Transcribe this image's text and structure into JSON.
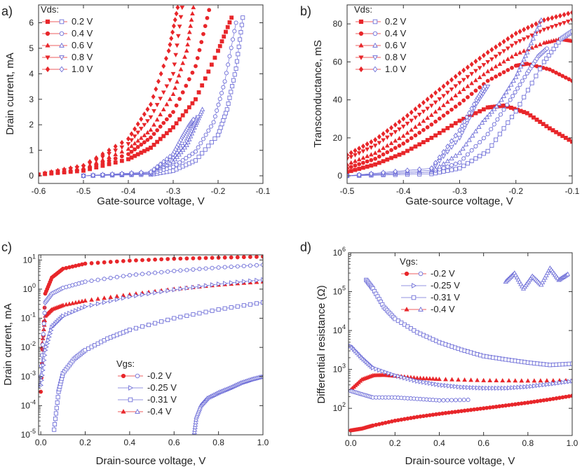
{
  "figure": {
    "description_labels": [
      "a)",
      "b)",
      "c)",
      "d)"
    ]
  },
  "colors": {
    "red": "#e8262a",
    "blue": "#6f6fd8",
    "axis": "#333333",
    "text": "#222222"
  },
  "chart_data": [
    {
      "id": "a",
      "panel_label": "a)",
      "type": "scatter",
      "title": "",
      "xlabel": "Gate-source voltage, V",
      "ylabel": "Drain current, mA",
      "xlim": [
        -0.6,
        -0.1
      ],
      "ylim": [
        -0.3,
        6.7
      ],
      "xticks": [
        -0.6,
        -0.5,
        -0.4,
        -0.3,
        -0.2,
        -0.1
      ],
      "xtick_labels": [
        "-0.6",
        "-0.5",
        "-0.4",
        "-0.3",
        "-0.2",
        "-0.1"
      ],
      "yticks": [
        0,
        1,
        2,
        3,
        4,
        5,
        6
      ],
      "ytick_labels": [
        "0",
        "1",
        "2",
        "3",
        "4",
        "5",
        "6"
      ],
      "yscale": "linear",
      "legend": {
        "title": "Vds:",
        "position": "top-left",
        "entries": [
          "0.2 V",
          "0.4 V",
          "0.6 V",
          "0.8 V",
          "1.0 V"
        ]
      },
      "series": [
        {
          "name": "0.2 V",
          "kind": "red",
          "marker": "square",
          "x": [
            -0.6,
            -0.5,
            -0.4,
            -0.35,
            -0.3,
            -0.25,
            -0.2,
            -0.17
          ],
          "y": [
            0.05,
            0.2,
            0.65,
            1.1,
            1.9,
            3.0,
            4.9,
            6.2
          ]
        },
        {
          "name": "0.4 V",
          "kind": "red",
          "marker": "circle",
          "x": [
            -0.6,
            -0.5,
            -0.4,
            -0.35,
            -0.3,
            -0.25,
            -0.22
          ],
          "y": [
            0.05,
            0.25,
            0.85,
            1.5,
            2.5,
            4.3,
            6.5
          ]
        },
        {
          "name": "0.6 V",
          "kind": "red",
          "marker": "triangle-up",
          "x": [
            -0.6,
            -0.5,
            -0.4,
            -0.35,
            -0.3,
            -0.27,
            -0.255
          ],
          "y": [
            0.05,
            0.3,
            1.05,
            1.8,
            3.2,
            4.9,
            6.6
          ]
        },
        {
          "name": "0.8 V",
          "kind": "red",
          "marker": "triangle-down",
          "x": [
            -0.6,
            -0.5,
            -0.4,
            -0.35,
            -0.3,
            -0.28
          ],
          "y": [
            0.05,
            0.35,
            1.25,
            2.3,
            4.0,
            6.6
          ]
        },
        {
          "name": "1.0 V",
          "kind": "red",
          "marker": "diamond",
          "x": [
            -0.6,
            -0.5,
            -0.4,
            -0.35,
            -0.31,
            -0.29
          ],
          "y": [
            0.05,
            0.4,
            1.45,
            2.8,
            4.9,
            6.6
          ]
        },
        {
          "name": "0.2 V",
          "kind": "blue",
          "marker": "square",
          "x": [
            -0.5,
            -0.35,
            -0.3,
            -0.25,
            -0.2,
            -0.18,
            -0.16,
            -0.145
          ],
          "y": [
            0,
            0.05,
            0.2,
            0.6,
            1.6,
            2.6,
            4.2,
            6.2
          ]
        },
        {
          "name": "0.4 V",
          "kind": "blue",
          "marker": "circle",
          "x": [
            -0.5,
            -0.35,
            -0.3,
            -0.25,
            -0.21,
            -0.185,
            -0.16
          ],
          "y": [
            0,
            0.08,
            0.35,
            0.95,
            2.1,
            3.7,
            6.0
          ]
        },
        {
          "name": "0.6 V",
          "kind": "blue",
          "marker": "triangle-up",
          "x": [
            -0.5,
            -0.35,
            -0.3,
            -0.27,
            -0.25,
            -0.235
          ],
          "y": [
            0,
            0.1,
            0.55,
            1.2,
            2.0,
            2.6
          ]
        },
        {
          "name": "0.8 V",
          "kind": "blue",
          "marker": "triangle-down",
          "x": [
            -0.5,
            -0.35,
            -0.3,
            -0.27,
            -0.255,
            -0.245
          ],
          "y": [
            0,
            0.12,
            0.7,
            1.35,
            1.9,
            2.3
          ]
        },
        {
          "name": "1.0 V",
          "kind": "blue",
          "marker": "diamond",
          "x": [
            -0.5,
            -0.35,
            -0.3,
            -0.28,
            -0.265,
            -0.255
          ],
          "y": [
            0,
            0.15,
            0.85,
            1.5,
            1.95,
            2.2
          ]
        }
      ]
    },
    {
      "id": "b",
      "panel_label": "b)",
      "type": "scatter",
      "title": "",
      "xlabel": "Gate-source voltage, V",
      "ylabel": "Transconductance, mS",
      "xlim": [
        -0.5,
        -0.1
      ],
      "ylim": [
        -4,
        90
      ],
      "xticks": [
        -0.5,
        -0.4,
        -0.3,
        -0.2,
        -0.1
      ],
      "xtick_labels": [
        "-0.5",
        "-0.4",
        "-0.3",
        "-0.2",
        "-0.1"
      ],
      "yticks": [
        0,
        20,
        40,
        60,
        80
      ],
      "ytick_labels": [
        "0",
        "20",
        "40",
        "60",
        "80"
      ],
      "yscale": "linear",
      "legend": {
        "title": "Vds:",
        "position": "top-left",
        "entries": [
          "0.2 V",
          "0.4 V",
          "0.6 V",
          "0.8 V",
          "1.0 V"
        ]
      },
      "series": [
        {
          "name": "0.2 V",
          "kind": "red",
          "marker": "square",
          "x": [
            -0.5,
            -0.45,
            -0.4,
            -0.35,
            -0.3,
            -0.25,
            -0.22,
            -0.18,
            -0.14,
            -0.1
          ],
          "y": [
            2,
            6,
            12,
            20,
            29,
            36,
            37,
            33,
            25,
            18
          ]
        },
        {
          "name": "0.4 V",
          "kind": "red",
          "marker": "circle",
          "x": [
            -0.5,
            -0.45,
            -0.4,
            -0.35,
            -0.3,
            -0.25,
            -0.2,
            -0.18,
            -0.14,
            -0.1
          ],
          "y": [
            4,
            9,
            17,
            27,
            38,
            50,
            58,
            59,
            56,
            50
          ]
        },
        {
          "name": "0.6 V",
          "kind": "red",
          "marker": "triangle-up",
          "x": [
            -0.5,
            -0.45,
            -0.4,
            -0.35,
            -0.3,
            -0.25,
            -0.2,
            -0.15,
            -0.12,
            -0.1
          ],
          "y": [
            6,
            12,
            21,
            32,
            44,
            55,
            64,
            70,
            72,
            71
          ]
        },
        {
          "name": "0.8 V",
          "kind": "red",
          "marker": "triangle-down",
          "x": [
            -0.5,
            -0.45,
            -0.4,
            -0.35,
            -0.3,
            -0.25,
            -0.2,
            -0.15,
            -0.1
          ],
          "y": [
            9,
            16,
            26,
            37,
            49,
            60,
            70,
            77,
            82
          ]
        },
        {
          "name": "1.0 V",
          "kind": "red",
          "marker": "diamond",
          "x": [
            -0.5,
            -0.45,
            -0.4,
            -0.35,
            -0.3,
            -0.25,
            -0.2,
            -0.15,
            -0.1
          ],
          "y": [
            11,
            19,
            30,
            42,
            54,
            65,
            75,
            82,
            86
          ]
        },
        {
          "name": "0.2 V",
          "kind": "blue",
          "marker": "square",
          "x": [
            -0.5,
            -0.35,
            -0.3,
            -0.25,
            -0.2,
            -0.15,
            -0.12,
            -0.1
          ],
          "y": [
            0,
            1,
            4,
            13,
            34,
            60,
            72,
            76
          ]
        },
        {
          "name": "0.4 V",
          "kind": "blue",
          "marker": "circle",
          "x": [
            -0.5,
            -0.35,
            -0.3,
            -0.25,
            -0.21,
            -0.18,
            -0.16,
            -0.145
          ],
          "y": [
            0,
            2,
            7,
            22,
            40,
            54,
            63,
            67
          ]
        },
        {
          "name": "0.6 V",
          "kind": "blue",
          "marker": "triangle-up",
          "x": [
            -0.5,
            -0.35,
            -0.3,
            -0.26,
            -0.23,
            -0.2,
            -0.18,
            -0.155
          ],
          "y": [
            0,
            2,
            12,
            28,
            38,
            52,
            65,
            82
          ]
        },
        {
          "name": "0.8 V",
          "kind": "blue",
          "marker": "triangle-down",
          "x": [
            -0.5,
            -0.35,
            -0.3,
            -0.27,
            -0.25
          ],
          "y": [
            0,
            3,
            20,
            38,
            47
          ]
        },
        {
          "name": "1.0 V",
          "kind": "blue",
          "marker": "diamond",
          "x": [
            -0.5,
            -0.35,
            -0.3,
            -0.27,
            -0.255
          ],
          "y": [
            0,
            4,
            24,
            40,
            47
          ]
        }
      ]
    },
    {
      "id": "c",
      "panel_label": "c)",
      "type": "scatter",
      "title": "",
      "xlabel": "Drain-source voltage, V",
      "ylabel": "Drain current, mA",
      "xlim": [
        -0.01,
        1.0
      ],
      "ylim": [
        1e-05,
        15
      ],
      "xticks": [
        0,
        0.2,
        0.4,
        0.6,
        0.8,
        1.0
      ],
      "xtick_labels": [
        "0.0",
        "0.2",
        "0.4",
        "0.6",
        "0.8",
        "1.0"
      ],
      "yscale": "log",
      "ylog_decades": [
        -5,
        -4,
        -3,
        -2,
        -1,
        0,
        1
      ],
      "ytick_mantissa": "10",
      "ytick_exponents": [
        "-5",
        "-4",
        "-3",
        "-2",
        "-1",
        "0",
        "1"
      ],
      "legend": {
        "title": "Vgs:",
        "position": "bottom-center",
        "entries": [
          "-0.2 V",
          "-0.25 V",
          "-0.31 V",
          "-0.4 V"
        ]
      },
      "series": [
        {
          "name": "-0.2 V",
          "kind": "red",
          "marker": "circle",
          "x": [
            0,
            0.02,
            0.05,
            0.1,
            0.2,
            0.4,
            0.6,
            0.8,
            1.0
          ],
          "y": [
            0.0003,
            0.7,
            2.5,
            5,
            7.5,
            9.5,
            11,
            12,
            13
          ]
        },
        {
          "name": "-0.4 V",
          "kind": "red",
          "marker": "triangle-up",
          "x": [
            0.005,
            0.02,
            0.05,
            0.1,
            0.2,
            0.4,
            0.6,
            0.8,
            1.0
          ],
          "y": [
            0.01,
            0.12,
            0.2,
            0.28,
            0.4,
            0.65,
            1.0,
            1.4,
            1.8
          ]
        },
        {
          "name": "-0.2 V",
          "kind": "blue",
          "marker": "circle",
          "x": [
            0,
            0.02,
            0.05,
            0.1,
            0.2,
            0.4,
            0.6,
            0.8,
            1.0
          ],
          "y": [
            0.001,
            0.35,
            0.7,
            1.1,
            1.8,
            3,
            4.2,
            5.5,
            6.8
          ]
        },
        {
          "name": "-0.25 V",
          "kind": "blue",
          "marker": "triangle-right",
          "x": [
            0,
            0.02,
            0.05,
            0.1,
            0.2,
            0.4,
            0.6,
            0.8,
            1.0
          ],
          "y": [
            0.0005,
            0.008,
            0.05,
            0.12,
            0.25,
            0.55,
            0.95,
            1.5,
            2.1
          ]
        },
        {
          "name": "-0.31 V",
          "kind": "blue",
          "marker": "square",
          "x": [
            0.06,
            0.08,
            0.1,
            0.15,
            0.2,
            0.3,
            0.4,
            0.6,
            0.8,
            1.0
          ],
          "y": [
            1.5e-05,
            0.0003,
            0.0013,
            0.004,
            0.008,
            0.02,
            0.04,
            0.1,
            0.2,
            0.35
          ]
        },
        {
          "name": "-0.4 V",
          "kind": "blue",
          "marker": "triangle-up",
          "x": [
            0.69,
            0.7,
            0.72,
            0.75,
            0.8,
            0.85,
            0.9,
            0.95,
            1.0
          ],
          "y": [
            1e-05,
            4e-05,
            0.0001,
            0.00018,
            0.00028,
            0.0004,
            0.0006,
            0.0008,
            0.001
          ]
        }
      ]
    },
    {
      "id": "d",
      "panel_label": "d)",
      "type": "scatter",
      "title": "",
      "xlabel": "Drain-source voltage, V",
      "ylabel": "Differential resistance (Ω)",
      "xlim": [
        -0.01,
        1.0
      ],
      "ylim": [
        20,
        1000000.0
      ],
      "xticks": [
        0,
        0.2,
        0.4,
        0.6,
        0.8,
        1.0
      ],
      "xtick_labels": [
        "0.0",
        "0.2",
        "0.4",
        "0.6",
        "0.8",
        "1.0"
      ],
      "yscale": "log",
      "ylog_decades": [
        2,
        3,
        4,
        5,
        6
      ],
      "ytick_mantissa": "10",
      "ytick_exponents": [
        "2",
        "3",
        "4",
        "5",
        "6"
      ],
      "legend": {
        "title": "Vgs:",
        "position": "top-center",
        "entries": [
          "-0.2 V",
          "-0.25 V",
          "-0.31 V",
          "-0.4 V"
        ]
      },
      "series": [
        {
          "name": "-0.2 V",
          "kind": "red",
          "marker": "circle",
          "x": [
            0,
            0.05,
            0.1,
            0.2,
            0.3,
            0.4,
            0.5,
            0.6,
            0.7,
            0.8,
            0.9,
            1.0
          ],
          "y": [
            27,
            30,
            36,
            48,
            60,
            72,
            85,
            100,
            118,
            140,
            170,
            210
          ]
        },
        {
          "name": "-0.4 V",
          "kind": "red",
          "marker": "triangle-up",
          "x": [
            0,
            0.05,
            0.1,
            0.15,
            0.2,
            0.3,
            0.4,
            0.6,
            0.8,
            1.0
          ],
          "y": [
            300,
            550,
            700,
            720,
            680,
            600,
            560,
            520,
            510,
            520
          ]
        },
        {
          "name": "-0.2 V",
          "kind": "blue",
          "marker": "circle",
          "x": [
            0,
            0.05,
            0.1,
            0.2,
            0.3,
            0.4,
            0.53
          ],
          "y": [
            280,
            230,
            190,
            190,
            175,
            160,
            165
          ]
        },
        {
          "name": "-0.25 V",
          "kind": "blue",
          "marker": "triangle-right",
          "x": [
            0,
            0.05,
            0.1,
            0.2,
            0.3,
            0.4,
            0.5,
            0.6,
            0.7,
            0.8,
            0.9,
            1.0
          ],
          "y": [
            4000,
            2000,
            1100,
            700,
            500,
            400,
            350,
            330,
            330,
            360,
            420,
            500
          ]
        },
        {
          "name": "-0.31 V",
          "kind": "blue",
          "marker": "square",
          "x": [
            0.07,
            0.1,
            0.15,
            0.2,
            0.3,
            0.4,
            0.5,
            0.6,
            0.7,
            0.8,
            0.9,
            1.0
          ],
          "y": [
            200000,
            120000,
            40000,
            20000,
            9000,
            5000,
            3200,
            2200,
            1800,
            1500,
            1300,
            1400
          ]
        },
        {
          "name": "-0.4 V",
          "kind": "blue",
          "marker": "triangle-up",
          "x": [
            0.7,
            0.74,
            0.78,
            0.82,
            0.86,
            0.9,
            0.94,
            0.98
          ],
          "y": [
            180000,
            300000,
            120000,
            250000,
            150000,
            400000,
            200000,
            280000
          ]
        }
      ]
    }
  ]
}
